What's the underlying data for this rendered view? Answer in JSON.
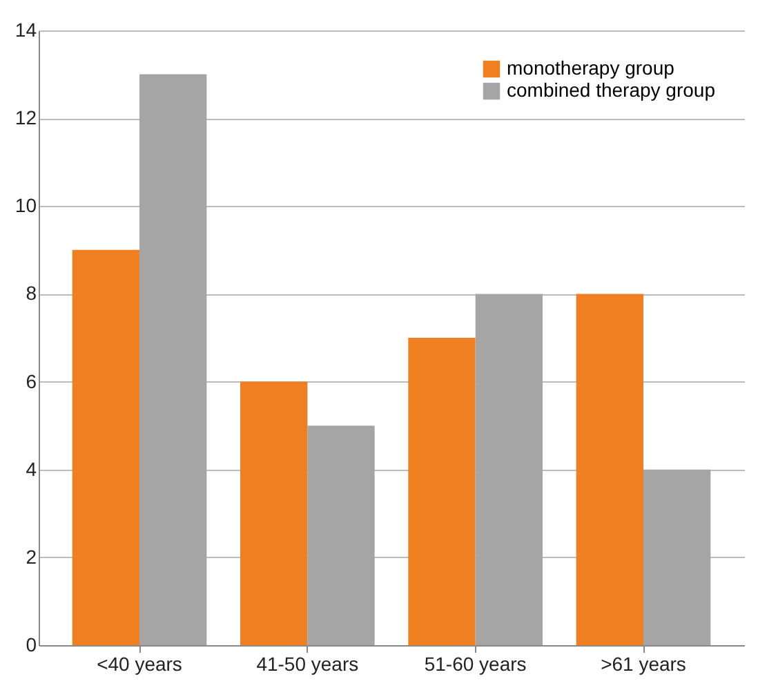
{
  "chart_data": {
    "type": "bar",
    "categories": [
      "<40 years",
      "41-50 years",
      "51-60 years",
      ">61 years"
    ],
    "series": [
      {
        "name": "monotherapy group",
        "color": "#f07f22",
        "values": [
          9,
          6,
          7,
          8
        ]
      },
      {
        "name": "combined therapy group",
        "color": "#a5a5a5",
        "values": [
          13,
          5,
          8,
          4
        ]
      }
    ],
    "ylim": [
      0,
      14
    ],
    "yticks": [
      0,
      2,
      4,
      6,
      8,
      10,
      12,
      14
    ],
    "grid": "y",
    "legend": "top right"
  }
}
